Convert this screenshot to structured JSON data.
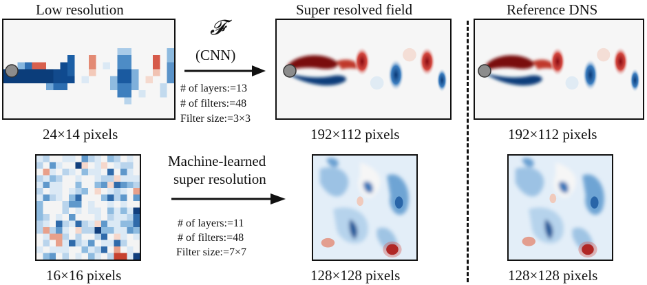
{
  "headers": {
    "low": "Low resolution",
    "super": "Super resolved field",
    "reference": "Reference DNS"
  },
  "top_row": {
    "operator_symbol": "𝓕",
    "operator_label": "(CNN)",
    "layers": "# of layers:=13",
    "filters": "# of filters:=48",
    "filter_size": "Filter size:=3×3",
    "low_caption": "24×14 pixels",
    "super_caption": "192×112 pixels",
    "reference_caption": "192×112 pixels"
  },
  "bottom_row": {
    "method_line1": "Machine-learned",
    "method_line2": "super resolution",
    "layers": "# of layers:=11",
    "filters": "# of filters:=48",
    "filter_size": "Filter size:=7×7",
    "low_caption": "16×16 pixels",
    "super_caption": "128×128 pixels",
    "reference_caption": "128×128 pixels"
  },
  "colors": {
    "positive_vortex": "#7a0c10",
    "negative_vortex": "#0b3d7a",
    "background": "#f7f7f7"
  }
}
